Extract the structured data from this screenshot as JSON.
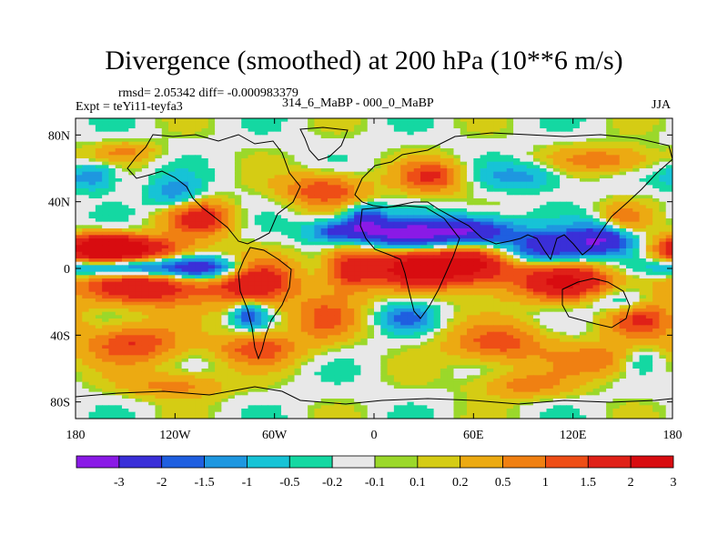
{
  "header": {
    "title": "Divergence (smoothed) at 200 hPa (10**6 m/s)",
    "stats": "rmsd= 2.05342 diff= -0.000983379",
    "expt": "Expt = teYi11-teyfa3",
    "experiment_label": "314_6_MaBP - 000_0_MaBP",
    "season": "JJA"
  },
  "chart_data": {
    "type": "heatmap",
    "title": "Divergence (smoothed) at 200 hPa (10**6 m/s)",
    "subtitle": "314_6_MaBP - 000_0_MaBP",
    "season": "JJA",
    "rmsd": 2.05342,
    "diff": -0.000983379,
    "projection": "cylindrical equidistant",
    "xlabel": "",
    "ylabel": "",
    "xlim": [
      -180,
      180
    ],
    "ylim": [
      -90,
      90
    ],
    "x_ticks": [
      {
        "value": -180,
        "label": "180"
      },
      {
        "value": -120,
        "label": "120W"
      },
      {
        "value": -60,
        "label": "60W"
      },
      {
        "value": 0,
        "label": "0"
      },
      {
        "value": 60,
        "label": "60E"
      },
      {
        "value": 120,
        "label": "120E"
      },
      {
        "value": 180,
        "label": "180"
      }
    ],
    "y_ticks": [
      {
        "value": 80,
        "label": "80N"
      },
      {
        "value": 40,
        "label": "40N"
      },
      {
        "value": 0,
        "label": "0"
      },
      {
        "value": -40,
        "label": "40S"
      },
      {
        "value": -80,
        "label": "80S"
      }
    ],
    "levels": [
      -3,
      -2,
      -1.5,
      -1,
      -0.5,
      -0.2,
      -0.1,
      0.1,
      0.2,
      0.5,
      1,
      1.5,
      2,
      3
    ],
    "level_labels": [
      "-3",
      "-2",
      "-1.5",
      "-1",
      "-0.5",
      "-0.2",
      "-0.1",
      "0.1",
      "0.2",
      "0.5",
      "1",
      "1.5",
      "2",
      "3"
    ],
    "colors": [
      "#8a1ae6",
      "#3a2fd8",
      "#1f5fe0",
      "#1e97e0",
      "#17c3d6",
      "#14d8a2",
      "#e8e8e8",
      "#9bd82a",
      "#d5cc14",
      "#ecaa12",
      "#f08012",
      "#ee4e16",
      "#e02118",
      "#d80c10"
    ],
    "field_sources": [
      {
        "lon": -150,
        "lat": 12,
        "amp": 3.2,
        "rx": 35,
        "ry": 8
      },
      {
        "lon": -165,
        "lat": 12,
        "amp": 2.6,
        "rx": 20,
        "ry": 8
      },
      {
        "lon": -140,
        "lat": -10,
        "amp": 3.0,
        "rx": 40,
        "ry": 12
      },
      {
        "lon": -145,
        "lat": -45,
        "amp": 2.0,
        "rx": 30,
        "ry": 12
      },
      {
        "lon": -105,
        "lat": 30,
        "amp": 2.5,
        "rx": 20,
        "ry": 10
      },
      {
        "lon": -72,
        "lat": -8,
        "amp": 2.8,
        "rx": 25,
        "ry": 14
      },
      {
        "lon": -70,
        "lat": -48,
        "amp": 1.8,
        "rx": 25,
        "ry": 10
      },
      {
        "lon": -30,
        "lat": -30,
        "amp": 1.5,
        "rx": 20,
        "ry": 14
      },
      {
        "lon": -15,
        "lat": 0,
        "amp": 2.2,
        "rx": 15,
        "ry": 14
      },
      {
        "lon": -30,
        "lat": 47,
        "amp": 2.0,
        "rx": 25,
        "ry": 10
      },
      {
        "lon": 35,
        "lat": 55,
        "amp": 2.0,
        "rx": 20,
        "ry": 10
      },
      {
        "lon": 25,
        "lat": 0,
        "amp": 3.4,
        "rx": 30,
        "ry": 12
      },
      {
        "lon": 62,
        "lat": 3,
        "amp": 3.0,
        "rx": 25,
        "ry": 12
      },
      {
        "lon": 115,
        "lat": -8,
        "amp": 3.2,
        "rx": 30,
        "ry": 12
      },
      {
        "lon": 160,
        "lat": -30,
        "amp": 2.0,
        "rx": 20,
        "ry": 12
      },
      {
        "lon": 75,
        "lat": -45,
        "amp": 1.8,
        "rx": 30,
        "ry": 12
      },
      {
        "lon": 140,
        "lat": -55,
        "amp": 1.5,
        "rx": 30,
        "ry": 10
      },
      {
        "lon": 150,
        "lat": 28,
        "amp": 1.6,
        "rx": 15,
        "ry": 10
      },
      {
        "lon": -120,
        "lat": -70,
        "amp": 1.3,
        "rx": 30,
        "ry": 8
      },
      {
        "lon": 90,
        "lat": -70,
        "amp": 1.2,
        "rx": 30,
        "ry": 8
      },
      {
        "lon": -150,
        "lat": 0,
        "amp": -3.2,
        "rx": 35,
        "ry": 6
      },
      {
        "lon": -100,
        "lat": 0,
        "amp": -2.8,
        "rx": 25,
        "ry": 7
      },
      {
        "lon": -20,
        "lat": 22,
        "amp": -2.5,
        "rx": 20,
        "ry": 7
      },
      {
        "lon": 20,
        "lat": 20,
        "amp": -3.4,
        "rx": 25,
        "ry": 9
      },
      {
        "lon": 60,
        "lat": 22,
        "amp": -3.2,
        "rx": 25,
        "ry": 9
      },
      {
        "lon": 105,
        "lat": 12,
        "amp": -3.0,
        "rx": 25,
        "ry": 10
      },
      {
        "lon": 140,
        "lat": 18,
        "amp": -3.0,
        "rx": 20,
        "ry": 10
      },
      {
        "lon": -5,
        "lat": 30,
        "amp": -2.2,
        "rx": 12,
        "ry": 8
      },
      {
        "lon": -170,
        "lat": 55,
        "amp": -1.5,
        "rx": 15,
        "ry": 8
      },
      {
        "lon": -120,
        "lat": 45,
        "amp": -1.4,
        "rx": 15,
        "ry": 10
      },
      {
        "lon": -75,
        "lat": -28,
        "amp": -2.0,
        "rx": 10,
        "ry": 8
      },
      {
        "lon": 20,
        "lat": -30,
        "amp": -1.6,
        "rx": 15,
        "ry": 8
      },
      {
        "lon": 150,
        "lat": -20,
        "amp": -1.5,
        "rx": 20,
        "ry": 8
      },
      {
        "lon": 90,
        "lat": 55,
        "amp": -1.2,
        "rx": 25,
        "ry": 8
      },
      {
        "lon": 160,
        "lat": -55,
        "amp": -1.0,
        "rx": 15,
        "ry": 8
      },
      {
        "lon": -150,
        "lat": 70,
        "amp": 1.0,
        "rx": 20,
        "ry": 6
      },
      {
        "lon": 140,
        "lat": 65,
        "amp": 1.4,
        "rx": 30,
        "ry": 8
      }
    ]
  }
}
